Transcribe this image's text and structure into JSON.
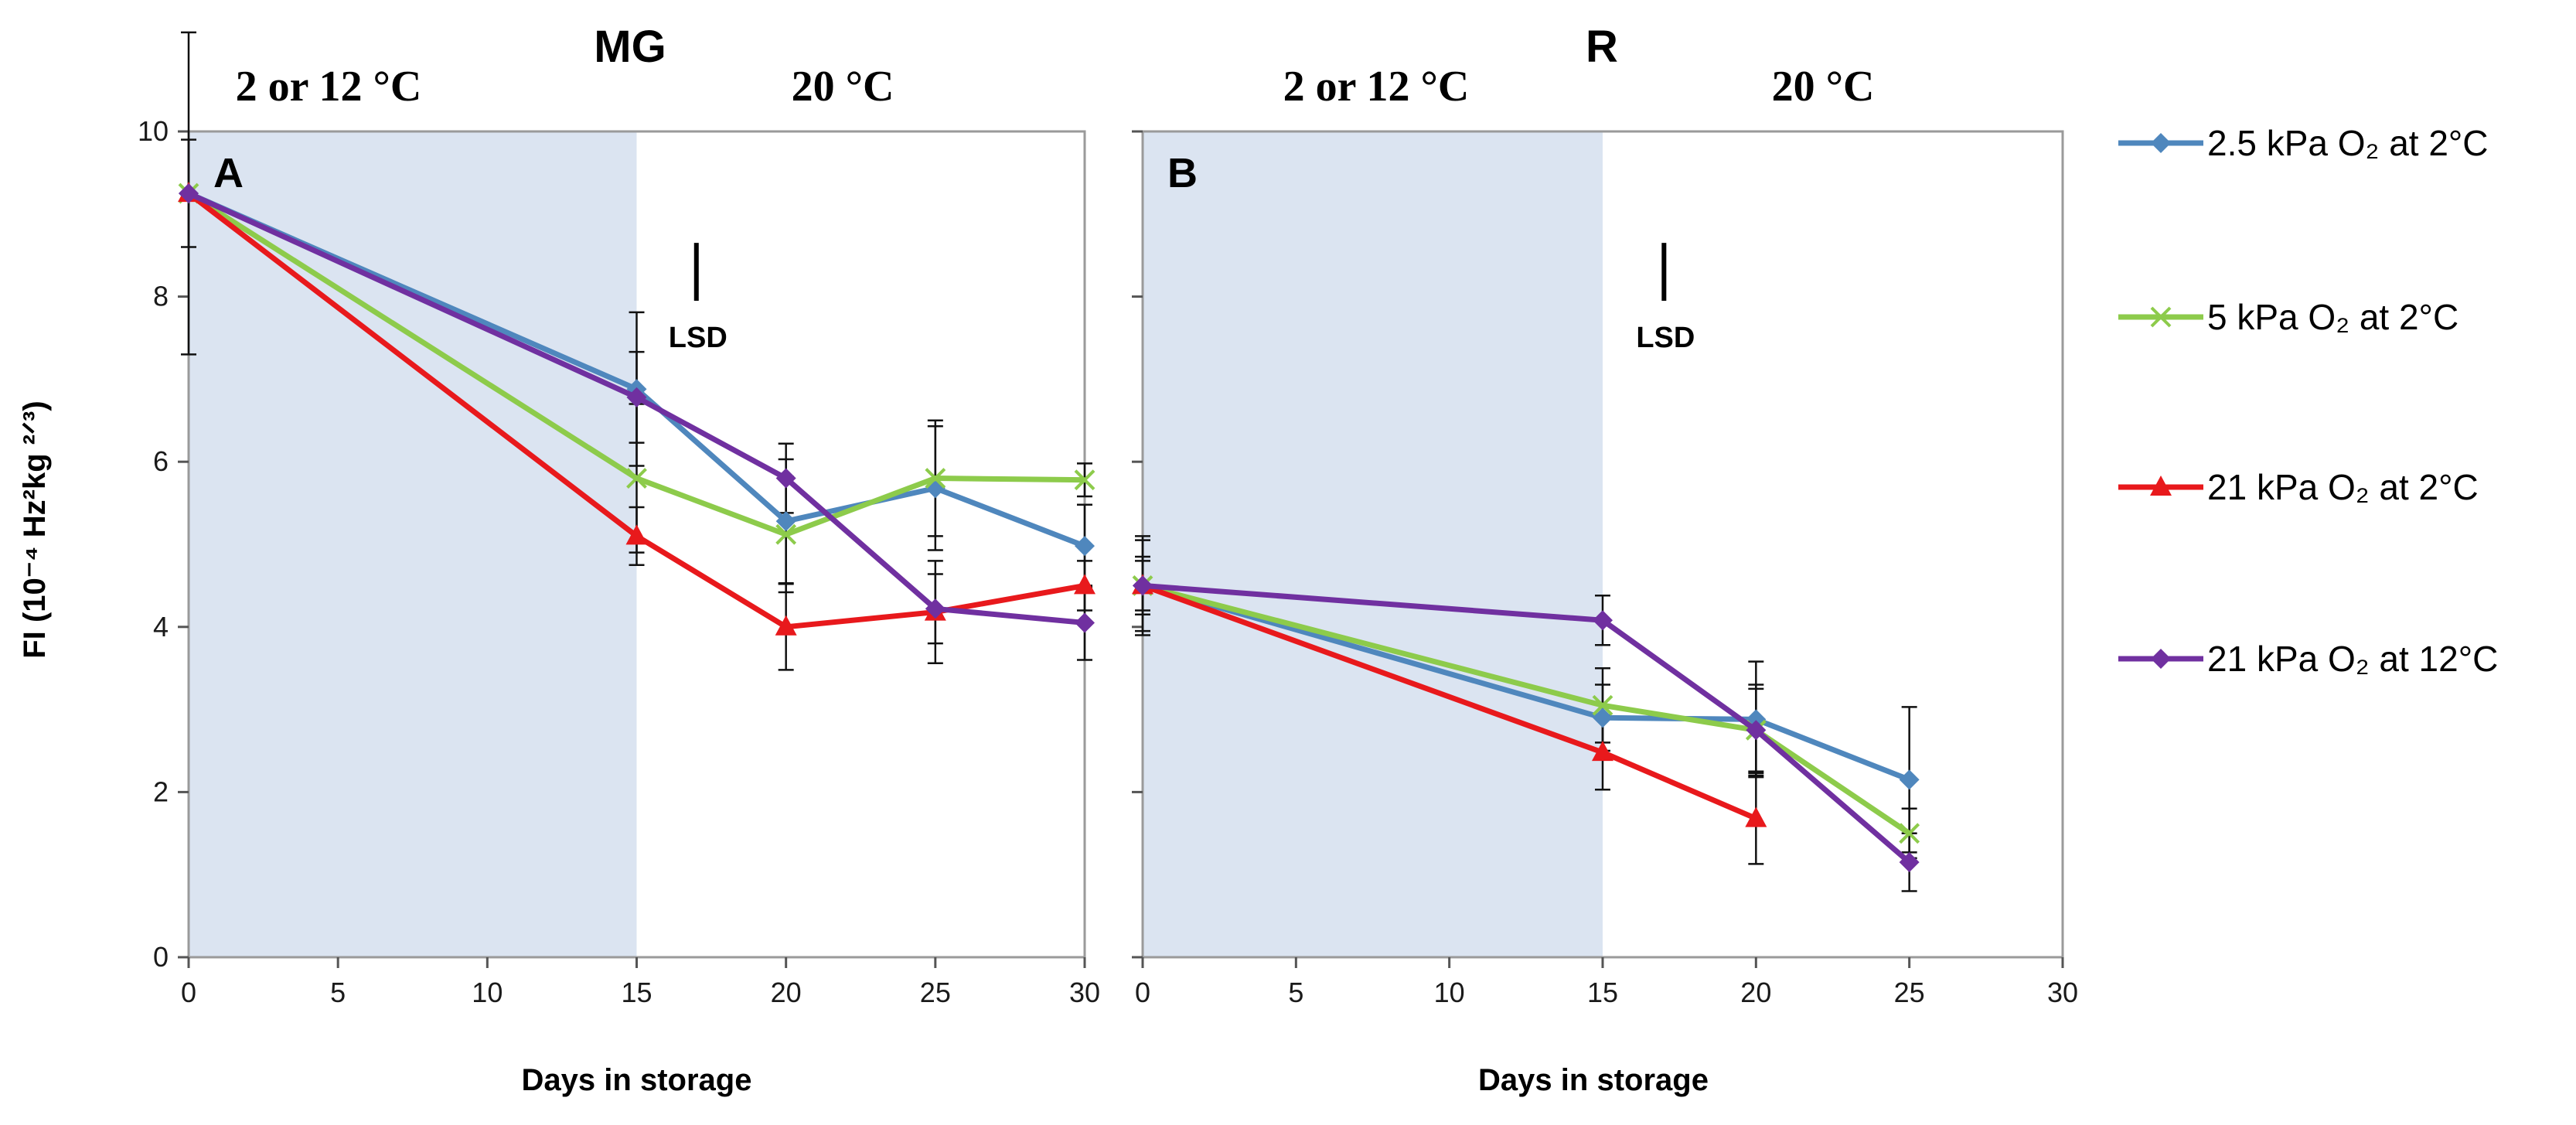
{
  "colors": {
    "shade": "#dbe4f1",
    "frame": "#9a9a9a",
    "errorbar": "#111111"
  },
  "y_axis_label": "FI (10⁻⁴ Hz²kg ²ᐟ³)",
  "legend": {
    "placement": "right",
    "entries": [
      {
        "label": "2.5  kPa O₂ at 2°C",
        "color": "#4f87bd",
        "marker": "diamond"
      },
      {
        "label": "5 kPa O₂ at 2°C",
        "color": "#8dcb4b",
        "marker": "x"
      },
      {
        "label": "21 kPa O₂ at 2°C",
        "color": "#e8191c",
        "marker": "triangle"
      },
      {
        "label": " 21 kPa O₂ at 12°C",
        "color": "#7030a0",
        "marker": "diamond"
      }
    ]
  },
  "chart_data": [
    {
      "type": "line",
      "panel_letter": "A",
      "title": "MG",
      "region_labels": [
        "2  or 12 °C",
        "20 °C"
      ],
      "shaded_x_range": [
        0,
        15
      ],
      "lsd_label": "LSD",
      "lsd_x": 17,
      "lsd_range": [
        7.95,
        8.65
      ],
      "xlabel": "Days in storage",
      "ylabel": "FI (10⁻⁴ Hz²kg ²ᐟ³)",
      "xlim": [
        0,
        30
      ],
      "ylim": [
        0,
        10
      ],
      "xticks": [
        0,
        5,
        10,
        15,
        20,
        25,
        30
      ],
      "yticks": [
        0,
        2,
        4,
        6,
        8,
        10
      ],
      "grid": false,
      "series": [
        {
          "name": "2.5  kPa O₂ at 2°C",
          "color": "#4f87bd",
          "marker": "diamond",
          "x": [
            0,
            15,
            20,
            25,
            30
          ],
          "y": [
            9.25,
            6.88,
            5.28,
            5.68,
            4.98
          ],
          "err": [
            0.65,
            0.93,
            0.75,
            0.75,
            0.5
          ]
        },
        {
          "name": "5 kPa O₂ at 2°C",
          "color": "#8dcb4b",
          "marker": "x",
          "x": [
            0,
            15,
            20,
            25,
            30
          ],
          "y": [
            9.25,
            5.8,
            5.12,
            5.8,
            5.78
          ],
          "err": [
            1.95,
            0.9,
            0.7,
            0.7,
            0.2
          ]
        },
        {
          "name": "21 kPa O₂ at 2°C",
          "color": "#e8191c",
          "marker": "triangle",
          "x": [
            0,
            15,
            20,
            25,
            30
          ],
          "y": [
            9.25,
            5.1,
            4.0,
            4.18,
            4.5
          ],
          "err": [
            0,
            0.35,
            0.52,
            0.62,
            0.3
          ]
        },
        {
          "name": " 21 kPa O₂ at 12°C",
          "color": "#7030a0",
          "marker": "diamond",
          "x": [
            0,
            15,
            20,
            25,
            30
          ],
          "y": [
            9.25,
            6.78,
            5.8,
            4.22,
            4.05
          ],
          "err": [
            0,
            0.55,
            0.42,
            0.42,
            0.45
          ]
        }
      ]
    },
    {
      "type": "line",
      "panel_letter": "B",
      "title": "R",
      "region_labels": [
        "2  or 12 °C",
        "20 °C"
      ],
      "shaded_x_range": [
        0,
        15
      ],
      "lsd_label": "LSD",
      "lsd_x": 17,
      "lsd_range": [
        7.95,
        8.65
      ],
      "xlabel": "Days in storage",
      "ylabel": "",
      "xlim": [
        0,
        30
      ],
      "ylim": [
        0,
        10
      ],
      "xticks": [
        0,
        5,
        10,
        15,
        20,
        25,
        30
      ],
      "yticks": [
        0,
        2,
        4,
        6,
        8,
        10
      ],
      "grid": false,
      "series": [
        {
          "name": "2.5  kPa O₂ at 2°C",
          "color": "#4f87bd",
          "marker": "diamond",
          "x": [
            0,
            15,
            20,
            25
          ],
          "y": [
            4.5,
            2.9,
            2.88,
            2.15
          ],
          "err": [
            0.6,
            0.4,
            0.7,
            0.88
          ]
        },
        {
          "name": "5 kPa O₂ at 2°C",
          "color": "#8dcb4b",
          "marker": "x",
          "x": [
            0,
            15,
            20,
            25
          ],
          "y": [
            4.5,
            3.05,
            2.75,
            1.5
          ],
          "err": [
            0.55,
            0.45,
            0.55,
            0.3
          ]
        },
        {
          "name": "21 kPa O₂ at 2°C",
          "color": "#e8191c",
          "marker": "triangle",
          "x": [
            0,
            15,
            20
          ],
          "y": [
            4.5,
            2.48,
            1.68
          ],
          "err": [
            0.3,
            0.45,
            0.55
          ]
        },
        {
          "name": " 21 kPa O₂ at 12°C",
          "color": "#7030a0",
          "marker": "diamond",
          "x": [
            0,
            15,
            20,
            25
          ],
          "y": [
            4.5,
            4.08,
            2.75,
            1.15
          ],
          "err": [
            0.35,
            0.3,
            0.5,
            0.35
          ]
        }
      ]
    }
  ]
}
